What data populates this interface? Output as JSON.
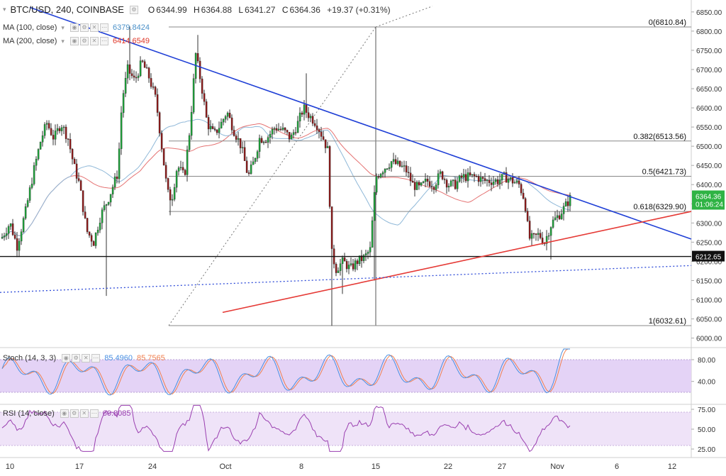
{
  "header": {
    "symbol": "BTC/USD, 240, COINBASE",
    "open_label": "O",
    "open": "6344.99",
    "high_label": "H",
    "high": "6364.88",
    "low_label": "L",
    "low": "6341.27",
    "close_label": "C",
    "close": "6364.36",
    "change": "+19.37 (+0.31%)"
  },
  "indicators": {
    "ma100": {
      "label": "MA (100, close)",
      "value": "6379.8424",
      "color": "#4a90c8"
    },
    "ma200": {
      "label": "MA (200, close)",
      "value": "6414.6549",
      "color": "#e0392b"
    },
    "stoch": {
      "label": "Stoch (14, 3, 3)",
      "k": "85.4960",
      "d": "85.7565",
      "k_color": "#4a90e2",
      "d_color": "#f08050"
    },
    "rsi": {
      "label": "RSI (14, close)",
      "value": "60.8085",
      "color": "#9a3fb0"
    }
  },
  "price_scale": {
    "ticks": [
      "6850.00",
      "6800.00",
      "6750.00",
      "6700.00",
      "6650.00",
      "6600.00",
      "6550.00",
      "6500.00",
      "6450.00",
      "6400.00",
      "6350.00",
      "6300.00",
      "6250.00",
      "6200.00",
      "6150.00",
      "6100.00",
      "6050.00",
      "6000.00"
    ],
    "last_price": "6364.36",
    "countdown": "01:06:24",
    "support_label": "6212.65"
  },
  "stoch_scale": {
    "ticks": [
      "80.00",
      "40.00"
    ]
  },
  "rsi_scale": {
    "ticks": [
      "75.00",
      "50.00",
      "25.00"
    ]
  },
  "time_axis": {
    "labels": [
      "10",
      "17",
      "24",
      "Oct",
      "8",
      "15",
      "22",
      "27",
      "Nov",
      "6",
      "12"
    ]
  },
  "fib_levels": [
    {
      "label": "0(6810.84)",
      "price": 6810.84
    },
    {
      "label": "0.382(6513.56)",
      "price": 6513.56
    },
    {
      "label": "0.5(6421.73)",
      "price": 6421.73
    },
    {
      "label": "0.618(6329.90)",
      "price": 6329.9
    },
    {
      "label": "1(6032.61)",
      "price": 6032.61
    }
  ],
  "colors": {
    "up": "#1e9e3a",
    "down": "#8b1a1a",
    "trend_blue": "#1f3fd6",
    "trend_red": "#e53935",
    "last_price_bg": "#2fb344",
    "support_bg": "#111111",
    "stoch_band": "#e4d3f6",
    "rsi_band": "#efe3f8"
  },
  "chart_data": {
    "type": "candlestick",
    "price_range": [
      5990,
      6870
    ],
    "support_price": 6212.65,
    "x_labels": [
      "10",
      "17",
      "24",
      "Oct",
      "8",
      "15",
      "22",
      "27",
      "Nov",
      "6",
      "12"
    ],
    "key_points": [
      {
        "label": "swing high",
        "price": 6810.84
      },
      {
        "label": "swing low",
        "price": 6032.61
      },
      {
        "label": "last close",
        "price": 6364.36
      }
    ],
    "stoch": {
      "range": [
        0,
        100
      ],
      "band": [
        20,
        80
      ],
      "last_k": 85.496,
      "last_d": 85.7565
    },
    "rsi": {
      "range": [
        0,
        100
      ],
      "band": [
        30,
        70
      ],
      "last": 60.8085
    }
  }
}
